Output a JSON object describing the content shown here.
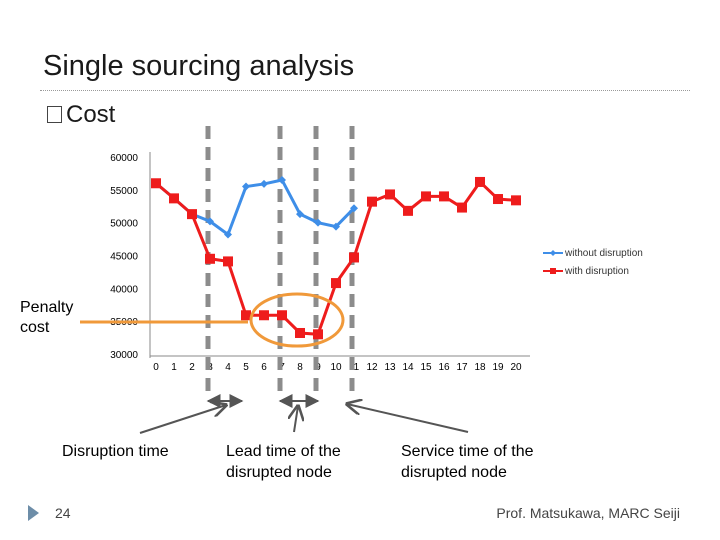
{
  "slide": {
    "title": "Single sourcing analysis",
    "bullet": "Cost",
    "side_label": "Penalty cost",
    "page_number": "24",
    "footer": "Prof. Matsukawa, MARC Seiji",
    "annotations": [
      "Disruption time",
      "Lead time of the disrupted node",
      "Service time of the disrupted node"
    ]
  },
  "chart_data": {
    "type": "line",
    "x": [
      0,
      1,
      2,
      3,
      4,
      5,
      6,
      7,
      8,
      9,
      10,
      11,
      12,
      13,
      14,
      15,
      16,
      17,
      18,
      19,
      20
    ],
    "ylim": [
      30000,
      60000
    ],
    "yticks": [
      30000,
      35000,
      40000,
      45000,
      50000,
      55000,
      60000
    ],
    "legend_position": "right",
    "series": [
      {
        "name": "without disruption",
        "color": "#3e8ee8",
        "marker": "diamond",
        "x": [
          0,
          1,
          2,
          3,
          4,
          5,
          6,
          7,
          8,
          9,
          10,
          11
        ],
        "values": [
          56000,
          53700,
          51300,
          50200,
          48200,
          55500,
          55900,
          56500,
          51300,
          50000,
          49400,
          52200
        ]
      },
      {
        "name": "with disruption",
        "color": "#ee1c1c",
        "marker": "square",
        "x": [
          0,
          1,
          2,
          3,
          4,
          5,
          6,
          7,
          8,
          9,
          10,
          11,
          12,
          13,
          14,
          15,
          16,
          17,
          18,
          19,
          20
        ],
        "values": [
          56000,
          53700,
          51300,
          44500,
          44100,
          35900,
          35900,
          35900,
          33200,
          33000,
          40800,
          44700,
          53200,
          54300,
          51800,
          54000,
          54000,
          52300,
          56200,
          53600,
          53400
        ]
      }
    ]
  }
}
